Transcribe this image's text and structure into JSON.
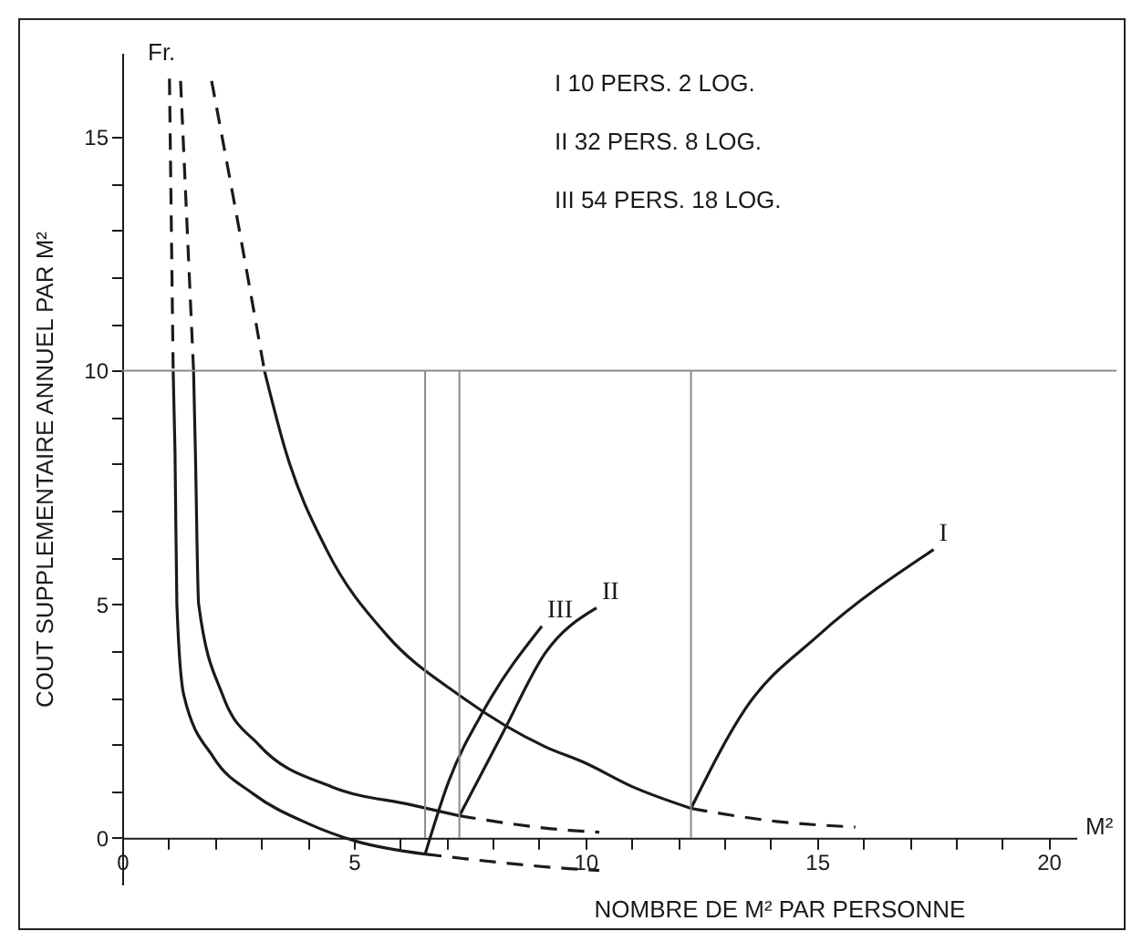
{
  "chart_data": {
    "type": "line",
    "xlabel": "NOMBRE DE M² PAR PERSONNE",
    "ylabel": "COUT SUPPLEMENTAIRE ANNUEL PAR M²",
    "xlim": [
      0,
      20.6
    ],
    "ylim": [
      -1,
      16.8
    ],
    "xticks": [
      0,
      {
        "value": 1,
        "label": null
      },
      {
        "value": 2,
        "label": null
      },
      {
        "value": 3,
        "label": null
      },
      {
        "value": 4,
        "label": null
      },
      5,
      {
        "value": 6,
        "label": null
      },
      {
        "value": 7,
        "label": null
      },
      {
        "value": 8,
        "label": null
      },
      {
        "value": 9,
        "label": null
      },
      10,
      {
        "value": 11,
        "label": null
      },
      {
        "value": 12,
        "label": null
      },
      {
        "value": 13,
        "label": null
      },
      {
        "value": 14,
        "label": null
      },
      15,
      {
        "value": 16,
        "label": null
      },
      {
        "value": 17,
        "label": null
      },
      {
        "value": 18,
        "label": null
      },
      {
        "value": 19,
        "label": null
      },
      20
    ],
    "yticks": [
      0,
      {
        "value": 1,
        "label": null
      },
      {
        "value": 2,
        "label": null
      },
      {
        "value": 3,
        "label": null
      },
      {
        "value": 4,
        "label": null
      },
      5,
      {
        "value": 6,
        "label": null
      },
      {
        "value": 7,
        "label": null
      },
      {
        "value": 8,
        "label": null
      },
      {
        "value": 9,
        "label": null
      },
      10,
      {
        "value": 11,
        "label": null
      },
      {
        "value": 12,
        "label": null
      },
      {
        "value": 13,
        "label": null
      },
      {
        "value": 14,
        "label": null
      },
      15
    ],
    "grid": false,
    "marker": "none",
    "series": [
      {
        "color": "#1a1a1a",
        "line_style": "dashed",
        "x": [
          1.93,
          2.52,
          3.07
        ],
        "values": [
          16.2,
          13.05,
          10
        ]
      },
      {
        "color": "#1a1a1a",
        "line_style": "solid",
        "x": [
          3.07,
          3.54,
          4.41,
          5.71,
          7.28,
          9.13,
          10.0,
          11.0,
          12.28
        ],
        "values": [
          10,
          8.24,
          6.17,
          4.34,
          3.05,
          1.95,
          1.6,
          1.1,
          0.63
        ]
      },
      {
        "color": "#1a1a1a",
        "line_style": "solid",
        "x": [
          12.28,
          13.46,
          15.04,
          17.52
        ],
        "values": [
          0.63,
          2.77,
          4.34,
          6.17
        ]
      },
      {
        "color": "#1a1a1a",
        "line_style": "dashed",
        "x": [
          12.28,
          14.13,
          15.83
        ],
        "values": [
          0.63,
          0.35,
          0.23
        ]
      },
      {
        "color": "#1a1a1a",
        "line_style": "dashed",
        "x": [
          1.26,
          1.54
        ],
        "values": [
          16.2,
          10
        ]
      },
      {
        "color": "#1a1a1a",
        "line_style": "solid",
        "x": [
          1.54,
          1.58,
          1.65,
          2.17,
          2.95,
          4.53,
          6.26,
          7.28
        ],
        "values": [
          10,
          8.24,
          5,
          3.05,
          1.99,
          1.09,
          0.7,
          0.47
        ]
      },
      {
        "color": "#1a1a1a",
        "line_style": "solid",
        "x": [
          7.28,
          8.23,
          9.13,
          10.24
        ],
        "values": [
          0.47,
          2.27,
          3.95,
          4.92
        ]
      },
      {
        "color": "#1a1a1a",
        "line_style": "dashed",
        "x": [
          7.28,
          9.65,
          10.3
        ],
        "values": [
          0.47,
          0.16,
          0.12
        ]
      },
      {
        "color": "#1a1a1a",
        "line_style": "dashed",
        "x": [
          1.02,
          1.1
        ],
        "values": [
          16.25,
          10
        ]
      },
      {
        "color": "#1a1a1a",
        "line_style": "solid",
        "x": [
          1.1,
          1.14,
          1.18,
          1.33,
          1.97,
          2.83,
          4.0,
          5.07,
          6.54
        ],
        "values": [
          10,
          8.24,
          5,
          3.05,
          1.72,
          0.94,
          0.31,
          -0.08,
          -0.35
        ]
      },
      {
        "color": "#1a1a1a",
        "line_style": "solid",
        "x": [
          6.54,
          7.05,
          7.83,
          9.06
        ],
        "values": [
          -0.35,
          1.21,
          2.77,
          4.53
        ]
      },
      {
        "color": "#1a1a1a",
        "line_style": "dashed",
        "x": [
          6.54,
          9.65,
          10.3
        ],
        "values": [
          -0.35,
          -0.66,
          -0.7
        ]
      }
    ],
    "ref_lines": [
      {
        "axis": "y",
        "value": 10,
        "color": "#8a8a8a"
      },
      {
        "axis": "x",
        "value": 6.54,
        "color": "#8a8a8a"
      },
      {
        "axis": "x",
        "value": 7.28,
        "color": "#8a8a8a"
      },
      {
        "axis": "x",
        "value": 12.28,
        "color": "#8a8a8a"
      }
    ],
    "annotations": [
      "Fr.",
      "M²",
      "I 10 PERS. 2 LOG.",
      "II 32 PERS. 8 LOG.",
      "III 54 PERS. 18 LOG.",
      {
        "text": "I",
        "x": 17.52,
        "y": 6.17
      },
      {
        "text": "II",
        "x": 10.24,
        "y": 4.92
      },
      {
        "text": "III",
        "x": 9.06,
        "y": 4.53
      }
    ]
  }
}
